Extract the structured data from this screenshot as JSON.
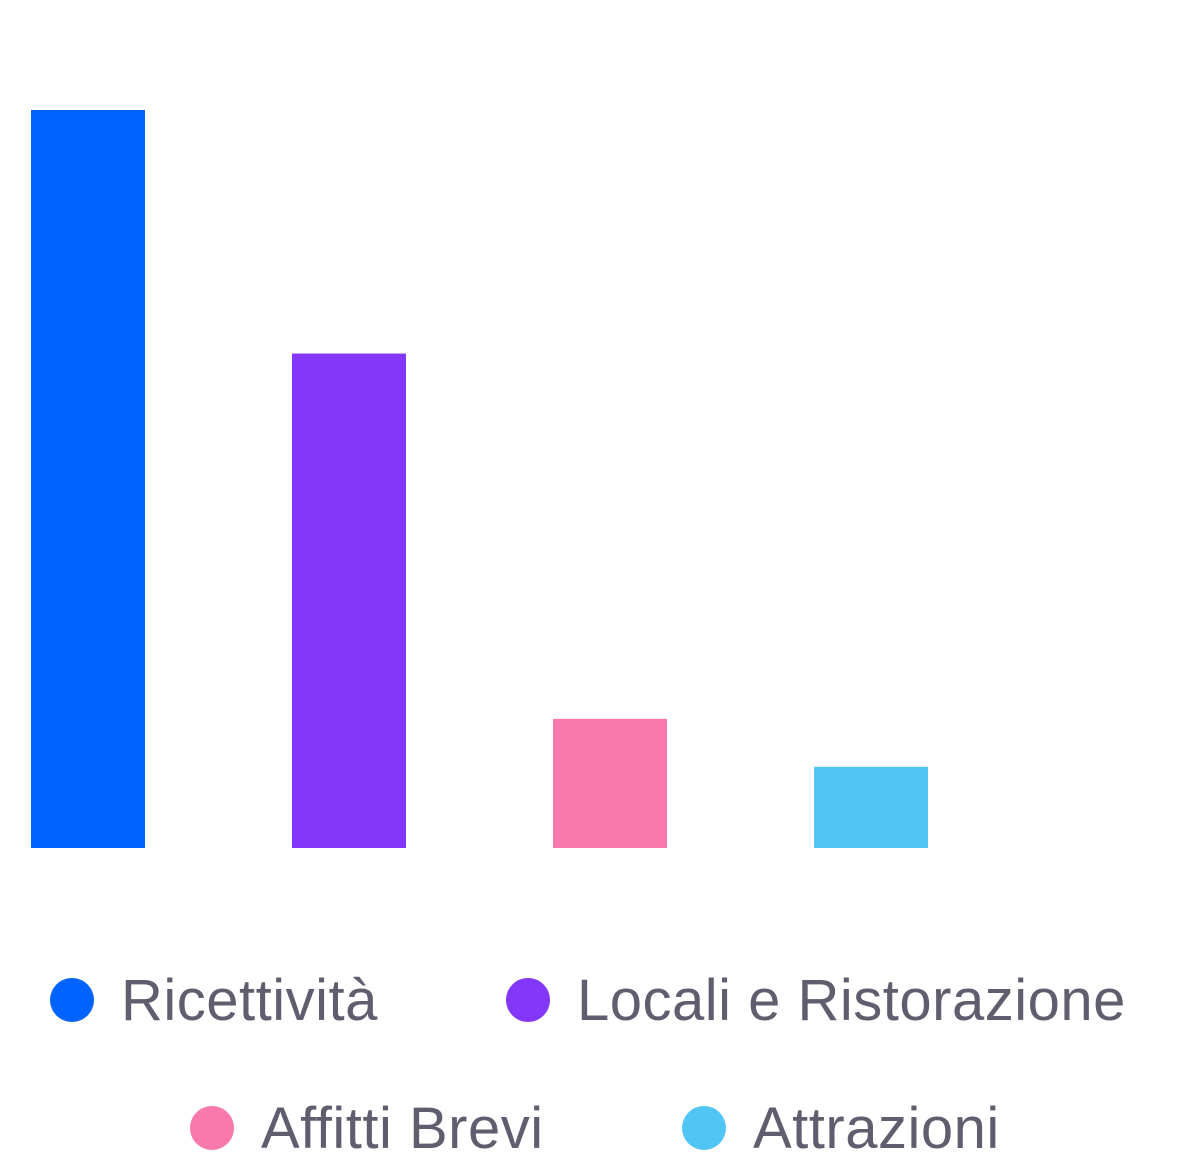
{
  "chart_data": {
    "type": "bar",
    "categories": [
      "Ricettività",
      "Locali e Ristorazione",
      "Affitti Brevi",
      "Attrazioni"
    ],
    "values": [
      100,
      67,
      17.5,
      11
    ],
    "colors": [
      "#0062ff",
      "#8337fa",
      "#f979ac",
      "#52c5f7"
    ],
    "ylim": [
      0,
      100
    ],
    "grid": false,
    "legend_position": "bottom",
    "title": "",
    "xlabel": "",
    "ylabel": ""
  },
  "legend": {
    "items": [
      {
        "label": "Ricettività",
        "color": "#0062ff"
      },
      {
        "label": "Locali e Ristorazione",
        "color": "#8337fa"
      },
      {
        "label": "Affitti Brevi",
        "color": "#f979ac"
      },
      {
        "label": "Attrazioni",
        "color": "#52c5f7"
      }
    ]
  }
}
